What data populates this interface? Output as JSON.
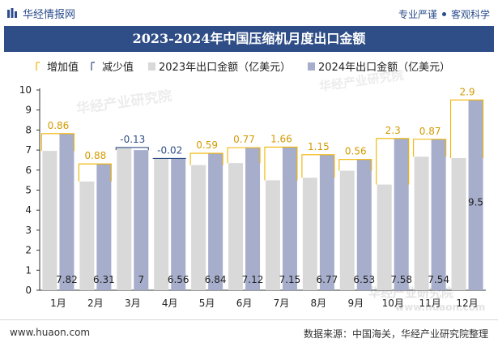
{
  "header": {
    "brand": "华经情报网",
    "tagline_1": "专业严谨",
    "tagline_2": "客观科学",
    "title": "2023-2024年中国压缩机月度出口金额"
  },
  "footer": {
    "website": "www.huaon.com",
    "source": "数据来源：中国海关，华经产业研究院整理"
  },
  "watermark": {
    "cn": "华经产业研究院",
    "en": "www.huaon.com"
  },
  "colors": {
    "title_bg": "#2f4d86",
    "bar_2023": "#d9d9d9",
    "bar_2024": "#a6aecb",
    "increase": "#f0b400",
    "decrease": "#2f4d86"
  },
  "chart_data": {
    "type": "bar",
    "title": "2023-2024年中国压缩机月度出口金额",
    "xlabel": "",
    "ylabel": "",
    "ylim": [
      0,
      10
    ],
    "yticks": [
      "0",
      "1",
      "2",
      "3",
      "4",
      "5",
      "6",
      "7",
      "8",
      "9",
      "10"
    ],
    "grid": false,
    "legend": [
      "增加值",
      "减少值",
      "2023年出口金额（亿美元）",
      "2024年出口金额（亿美元）"
    ],
    "categories": [
      "1月",
      "2月",
      "3月",
      "4月",
      "5月",
      "6月",
      "7月",
      "8月",
      "9月",
      "10月",
      "11月",
      "12月"
    ],
    "series": [
      {
        "name": "2023年出口金额（亿美元）",
        "values": [
          6.96,
          5.43,
          7.13,
          6.58,
          6.25,
          6.35,
          5.49,
          5.62,
          5.97,
          5.28,
          6.67,
          6.6
        ]
      },
      {
        "name": "2024年出口金额（亿美元）",
        "values": [
          7.82,
          6.31,
          7,
          6.56,
          6.84,
          7.12,
          7.15,
          6.77,
          6.53,
          7.58,
          7.54,
          9.5
        ]
      }
    ],
    "change_labels": [
      "0.86",
      "0.88",
      "-0.13",
      "-0.02",
      "0.59",
      "0.77",
      "1.66",
      "1.15",
      "0.56",
      "2.3",
      "0.87",
      "2.9"
    ],
    "value_labels": [
      "7.82",
      "6.31",
      "7",
      "6.56",
      "6.84",
      "7.12",
      "7.15",
      "6.77",
      "6.53",
      "7.58",
      "7.54",
      "9.5"
    ]
  }
}
